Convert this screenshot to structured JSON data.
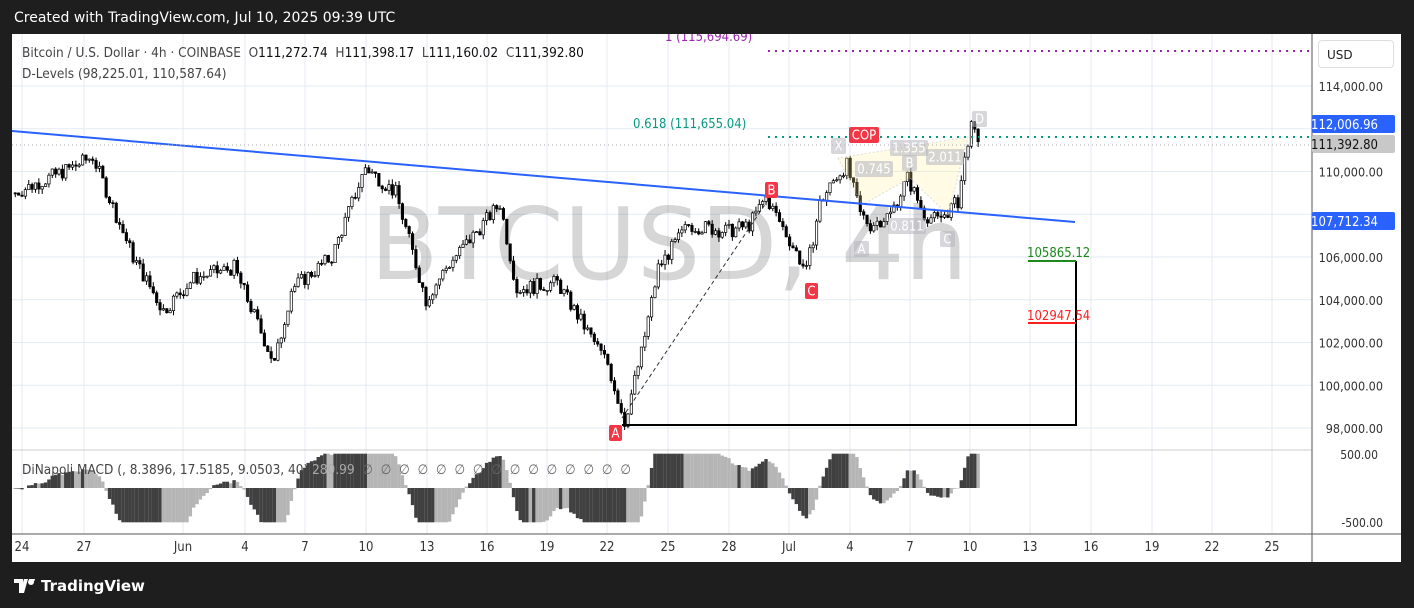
{
  "header": {
    "created_text": "Created with TradingView.com, Jul 10, 2025 09:39 UTC"
  },
  "legend": {
    "symbol": "Bitcoin / U.S. Dollar · 4h · COINBASE",
    "open_label": "O",
    "open": "111,272.74",
    "high_label": "H",
    "high": "111,398.17",
    "low_label": "L",
    "low": "111,160.02",
    "close_label": "C",
    "close": "111,392.80",
    "indicator": "D-Levels (98,225.01, 110,587.64)"
  },
  "macd": {
    "label": "DiNapoli MACD (, 8.3896, 17.5185, 9.0503, 40)",
    "value": "280.99",
    "empty_values": "∅ ∅ ∅ ∅ ∅ ∅ ∅ ∅ ∅ ∅ ∅ ∅ ∅ ∅ ∅",
    "axis_top": "500.00",
    "axis_bottom": "-500.00"
  },
  "watermark": "BTCUSD, 4h",
  "price_axis": {
    "currency": "USD",
    "ticks": [
      "114,000.00",
      "110,000.00",
      "106,000.00",
      "104,000.00",
      "102,000.00",
      "100,000.00",
      "98,000.00"
    ],
    "badges": [
      {
        "text": "112,006.96",
        "color": "#2962ff"
      },
      {
        "text": "111,392.80",
        "color": "#c8c8c8"
      },
      {
        "text": "107,712.34",
        "color": "#2962ff"
      }
    ]
  },
  "annotations": {
    "fib_1": "1 (115,694.69)",
    "fib_0618": "0.618 (111,655.04)",
    "cop": "COP",
    "abc": [
      "A",
      "B",
      "C"
    ],
    "harmonic": {
      "X": "X",
      "A": "A",
      "B": "B",
      "C": "C",
      "D": "D",
      "r1": "0.745",
      "r2": "0.811",
      "r3": "1.355",
      "r4": "2.011"
    },
    "target_green": "105865.12",
    "target_red": "102947.54"
  },
  "colors": {
    "trendline": "#2962ff",
    "fib_1": "#9c27b0",
    "fib_0618": "#089981",
    "label_red": "#f23645",
    "green": "#1b8a1b",
    "red": "#ff1f1f"
  },
  "time_axis": [
    "24",
    "27",
    "Jun",
    "4",
    "7",
    "10",
    "13",
    "16",
    "19",
    "22",
    "25",
    "28",
    "Jul",
    "4",
    "7",
    "10",
    "13",
    "16",
    "19",
    "22",
    "25"
  ],
  "footer": {
    "brand": "TradingView"
  },
  "chart_data": {
    "type": "candlestick",
    "title": "Bitcoin / U.S. Dollar · 4h · COINBASE",
    "ylim": [
      97000,
      116000
    ],
    "approx_price_path": [
      [
        "2025-05-23T16:00",
        109000
      ],
      [
        "2025-05-26T12:00",
        110200
      ],
      [
        "2025-05-27T12:00",
        110700
      ],
      [
        "2025-05-29T12:00",
        106000
      ],
      [
        "2025-05-31T00:00",
        103500
      ],
      [
        "2025-06-01T12:00",
        105000
      ],
      [
        "2025-06-03T12:00",
        105500
      ],
      [
        "2025-06-05T12:00",
        101000
      ],
      [
        "2025-06-06T08:00",
        104500
      ],
      [
        "2025-06-08T08:00",
        106000
      ],
      [
        "2025-06-10T00:00",
        110200
      ],
      [
        "2025-06-11T12:00",
        109000
      ],
      [
        "2025-06-13T00:00",
        104000
      ],
      [
        "2025-06-14T00:00",
        105500
      ],
      [
        "2025-06-16T16:00",
        108500
      ],
      [
        "2025-06-17T12:00",
        104500
      ],
      [
        "2025-06-19T12:00",
        104800
      ],
      [
        "2025-06-21T00:00",
        102500
      ],
      [
        "2025-06-22T00:00",
        101000
      ],
      [
        "2025-06-22T20:00",
        98300
      ],
      [
        "2025-06-23T16:00",
        101500
      ],
      [
        "2025-06-24T12:00",
        105500
      ],
      [
        "2025-06-26T00:00",
        107500
      ],
      [
        "2025-06-28T00:00",
        107200
      ],
      [
        "2025-06-29T00:00",
        107500
      ],
      [
        "2025-06-29T20:00",
        108800
      ],
      [
        "2025-07-01T00:00",
        106800
      ],
      [
        "2025-07-01T20:00",
        105300
      ],
      [
        "2025-07-02T12:00",
        108500
      ],
      [
        "2025-07-03T08:00",
        109800
      ],
      [
        "2025-07-03T20:00",
        110300
      ],
      [
        "2025-07-04T12:00",
        108000
      ],
      [
        "2025-07-05T00:00",
        107500
      ],
      [
        "2025-07-06T00:00",
        108000
      ],
      [
        "2025-07-06T20:00",
        109700
      ],
      [
        "2025-07-07T16:00",
        108000
      ],
      [
        "2025-07-08T08:00",
        107700
      ],
      [
        "2025-07-09T08:00",
        108600
      ],
      [
        "2025-07-09T20:00",
        111500
      ],
      [
        "2025-07-10T00:00",
        112000
      ],
      [
        "2025-07-10T08:00",
        111392.8
      ]
    ]
  }
}
